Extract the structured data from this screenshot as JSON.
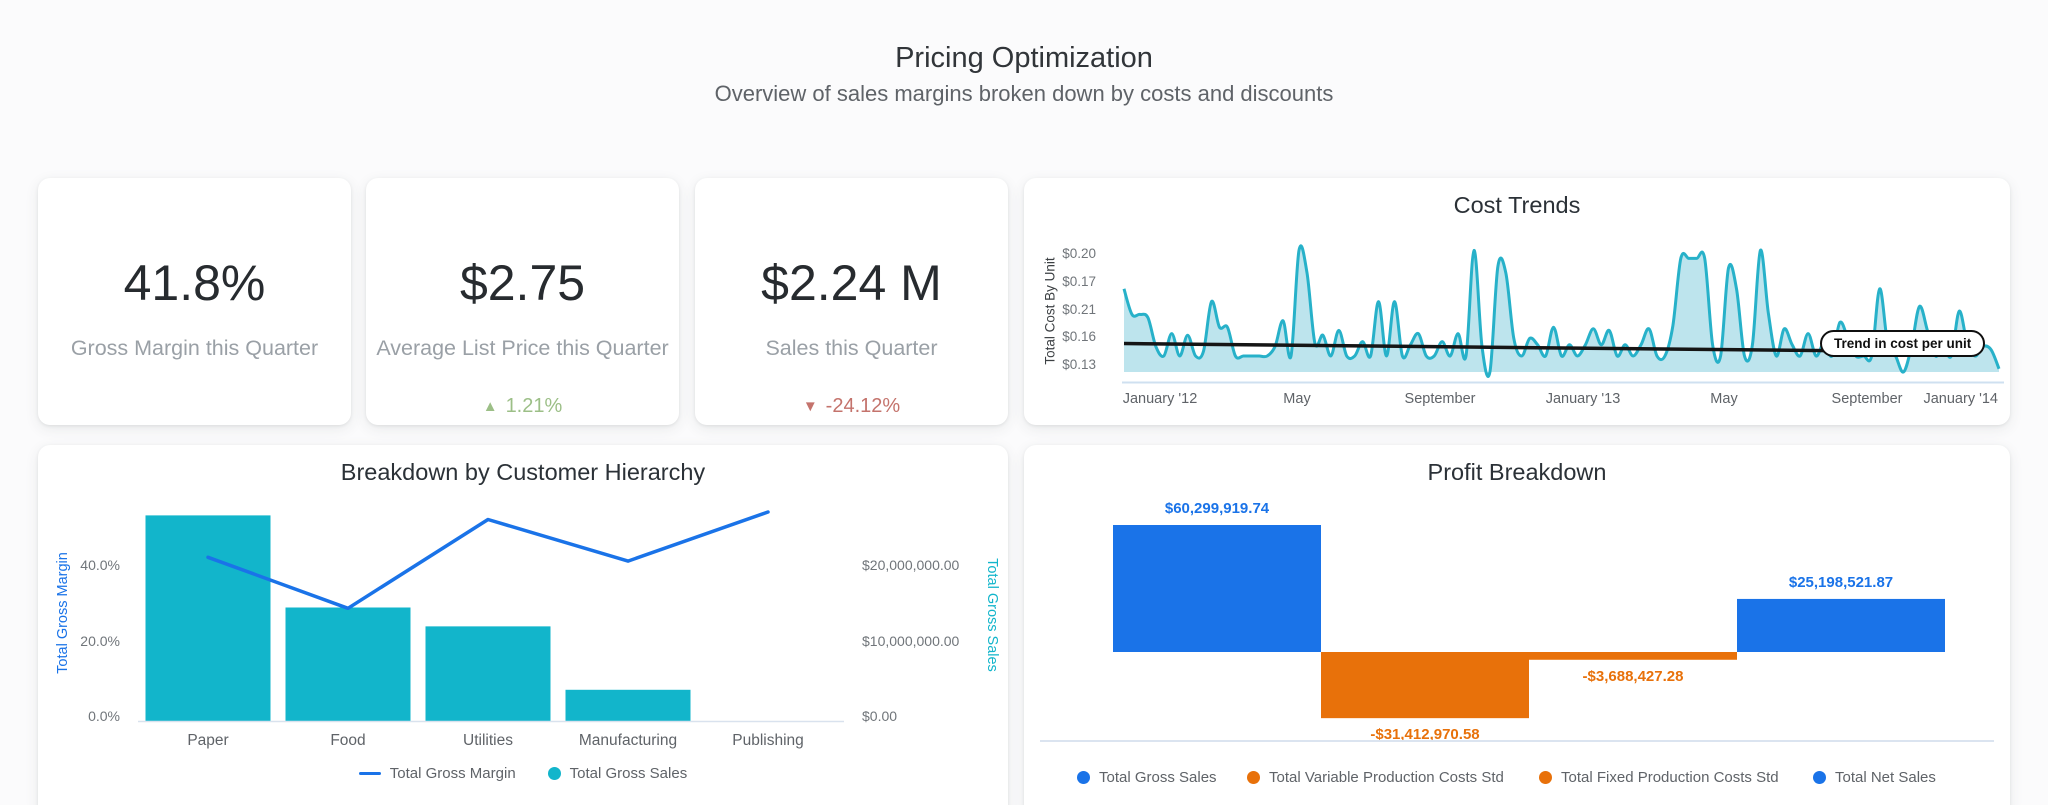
{
  "page": {
    "title": "Pricing Optimization",
    "subtitle": "Overview of sales margins broken down by costs and discounts"
  },
  "kpis": [
    {
      "value": "41.8%",
      "label": "Gross Margin this Quarter"
    },
    {
      "value": "$2.75",
      "label": "Average List Price this Quarter",
      "delta": {
        "direction": "up",
        "icon": "up-triangle",
        "glyph": "▲",
        "text": "1.21%",
        "color": "#9cbf87"
      }
    },
    {
      "value": "$2.24 M",
      "label": "Sales this Quarter",
      "delta": {
        "direction": "down",
        "icon": "down-triangle",
        "glyph": "▼",
        "text": "-24.12%",
        "color": "#c4736c"
      }
    }
  ],
  "colors": {
    "blue": "#1a73e8",
    "teal": "#12b5cb",
    "area_stroke": "#27b1c9",
    "area_fill": "#bde4ed",
    "orange": "#e8710a",
    "green": "#9cbf87",
    "red": "#c4736c",
    "trend_black": "#151515",
    "axis_line": "#d9e2ee",
    "tick_text": "#70757a"
  },
  "chart_data": [
    {
      "id": "cost-trends",
      "type": "area",
      "title": "Cost Trends",
      "ylabel": "Total Cost By Unit",
      "y_tick_labels": [
        "$0.20",
        "$0.17",
        "$0.21",
        "$0.16",
        "$0.13"
      ],
      "x_tick_labels": [
        "January '12",
        "May",
        "September",
        "January '13",
        "May",
        "September",
        "January '14"
      ],
      "ylim": [
        0.13,
        0.215
      ],
      "grid": false,
      "legend_position": "none",
      "series": [
        {
          "name": "Total Cost By Unit",
          "unit": "$ per unit, weekly (values estimated from plot)",
          "values": [
            0.186,
            0.17,
            0.17,
            0.168,
            0.15,
            0.144,
            0.158,
            0.144,
            0.157,
            0.144,
            0.147,
            0.178,
            0.162,
            0.162,
            0.144,
            0.144,
            0.144,
            0.144,
            0.144,
            0.15,
            0.166,
            0.144,
            0.21,
            0.196,
            0.152,
            0.157,
            0.144,
            0.16,
            0.144,
            0.144,
            0.153,
            0.144,
            0.178,
            0.144,
            0.178,
            0.144,
            0.151,
            0.158,
            0.144,
            0.144,
            0.153,
            0.144,
            0.158,
            0.144,
            0.21,
            0.15,
            0.134,
            0.2,
            0.196,
            0.155,
            0.144,
            0.155,
            0.151,
            0.144,
            0.162,
            0.144,
            0.151,
            0.144,
            0.151,
            0.161,
            0.151,
            0.16,
            0.144,
            0.151,
            0.144,
            0.151,
            0.161,
            0.144,
            0.144,
            0.163,
            0.205,
            0.205,
            0.205,
            0.205,
            0.151,
            0.144,
            0.199,
            0.186,
            0.144,
            0.151,
            0.21,
            0.171,
            0.144,
            0.161,
            0.151,
            0.144,
            0.158,
            0.144,
            0.152,
            0.144,
            0.165,
            0.155,
            0.144,
            0.144,
            0.144,
            0.186,
            0.152,
            0.144,
            0.134,
            0.15,
            0.175,
            0.16,
            0.144,
            0.15,
            0.144,
            0.172,
            0.152,
            0.144,
            0.15,
            0.148,
            0.136
          ]
        }
      ],
      "trendline": {
        "label": "Trend in cost per unit",
        "start_value": 0.165,
        "end_value": 0.158
      }
    },
    {
      "id": "customer-breakdown",
      "type": "combo-bar-line",
      "title": "Breakdown by Customer Hierarchy",
      "categories": [
        "Paper",
        "Food",
        "Utilities",
        "Manufacturing",
        "Publishing"
      ],
      "series": [
        {
          "name": "Total Gross Margin",
          "chart": "line",
          "axis": "left",
          "unit": "%",
          "values": [
            43.5,
            30,
            53.5,
            42.5,
            55.5
          ]
        },
        {
          "name": "Total Gross Sales",
          "chart": "bar",
          "axis": "right",
          "unit": "USD",
          "values": [
            27300000,
            15100000,
            12600000,
            4200000,
            0
          ]
        }
      ],
      "left_axis": {
        "title": "Total Gross Margin",
        "tick_labels": [
          "0.0%",
          "20.0%",
          "40.0%"
        ],
        "range_pct": [
          0,
          58
        ]
      },
      "right_axis": {
        "title": "Total Gross Sales",
        "tick_labels": [
          "$0.00",
          "$10,000,000.00",
          "$20,000,000.00"
        ],
        "range_usd": [
          0,
          29000000
        ]
      },
      "grid": false,
      "legend_position": "bottom"
    },
    {
      "id": "profit-breakdown",
      "type": "waterfall-bar",
      "title": "Profit Breakdown",
      "bars": [
        {
          "name": "Total Gross Sales",
          "value": 60299919.74,
          "label": "$60,299,919.74",
          "color": "#1a73e8"
        },
        {
          "name": "Total Variable Production Costs Std",
          "value": -31412970.58,
          "label": "-$31,412,970.58",
          "color": "#e8710a"
        },
        {
          "name": "Total Fixed Production Costs Std",
          "value": -3688427.28,
          "label": "-$3,688,427.28",
          "color": "#e8710a"
        },
        {
          "name": "Total Net Sales",
          "value": 25198521.87,
          "label": "$25,198,521.87",
          "color": "#1a73e8"
        }
      ],
      "legend": [
        "Total Gross Sales",
        "Total Variable Production Costs Std",
        "Total Fixed Production Costs Std",
        "Total Net Sales"
      ],
      "grid": false,
      "legend_position": "bottom"
    }
  ]
}
